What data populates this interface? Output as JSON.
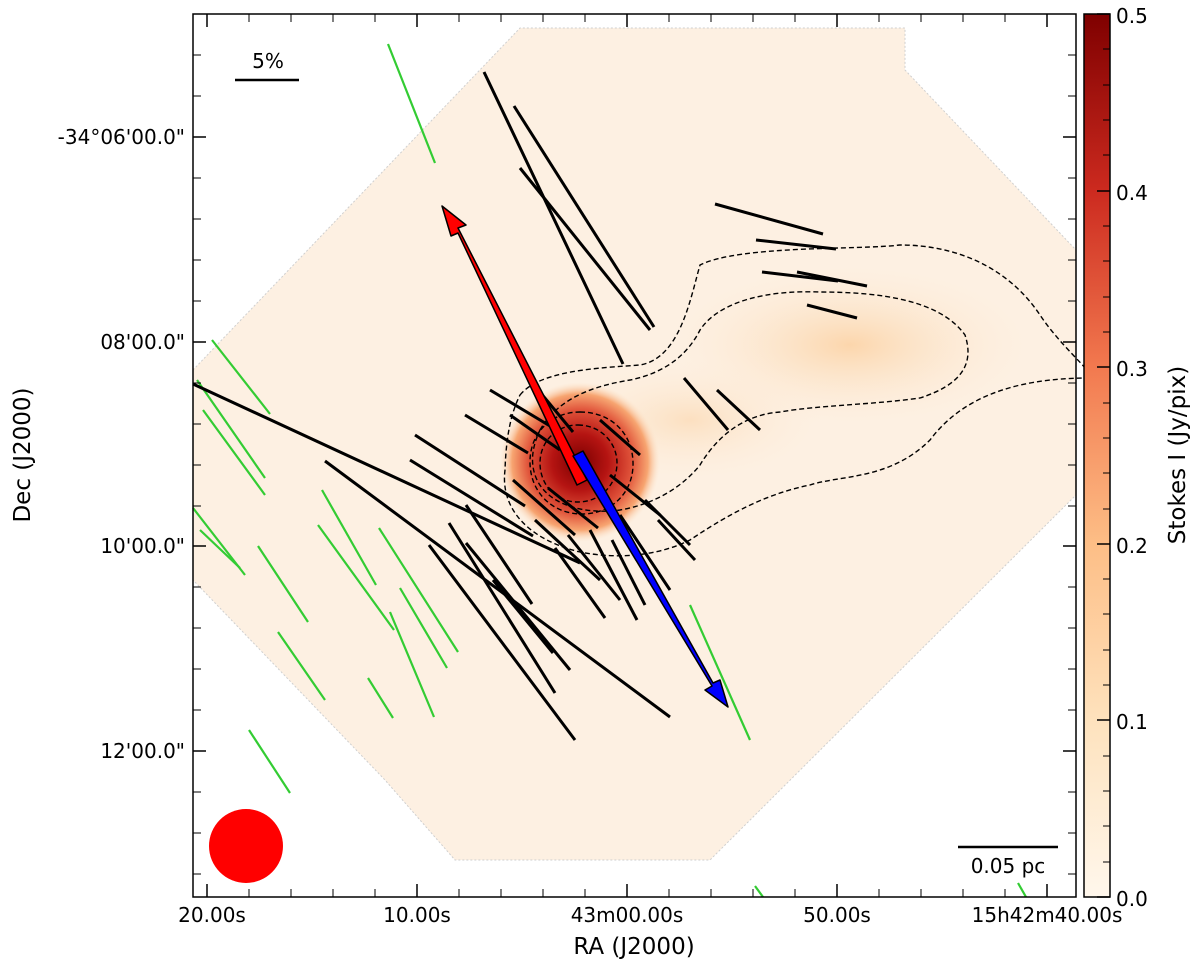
{
  "chart_data": {
    "type": "heatmap",
    "title": "",
    "xlabel": "RA (J2000)",
    "ylabel": "Dec (J2000)",
    "x_ticks": [
      "20.00s",
      "10.00s",
      "43m00.00s",
      "50.00s",
      "15h42m40.00s"
    ],
    "y_ticks": [
      "-34°06'00.0\"",
      "08'00.0\"",
      "10'00.0\"",
      "12'00.0\""
    ],
    "colorbar": {
      "label": "Stokes I (Jy/pix)",
      "ticks": [
        "0.0",
        "0.1",
        "0.2",
        "0.3",
        "0.4",
        "0.5"
      ],
      "range": [
        0.0,
        0.5
      ],
      "colormap": "OrRd"
    },
    "peak": {
      "ra": "15h43m02s",
      "dec": "-34°09'00\"",
      "value": 0.5
    },
    "contours": {
      "style": "dashed",
      "color": "#000000",
      "count": 3
    },
    "vectors": {
      "black": {
        "description": "dust polarization",
        "color": "#000000",
        "count": 50
      },
      "green": {
        "description": "polarization",
        "color": "#33cc33",
        "count": 22
      }
    },
    "outflow_arrows": [
      {
        "lobe": "red",
        "color": "#ff0000",
        "direction": "north-east"
      },
      {
        "lobe": "blue",
        "color": "#0000ff",
        "direction": "south-west"
      }
    ],
    "beam_color": "#ff0000",
    "scale_vector_label": "5%",
    "scale_bar_label": "0.05 pc",
    "grid": false,
    "legend": "none"
  }
}
